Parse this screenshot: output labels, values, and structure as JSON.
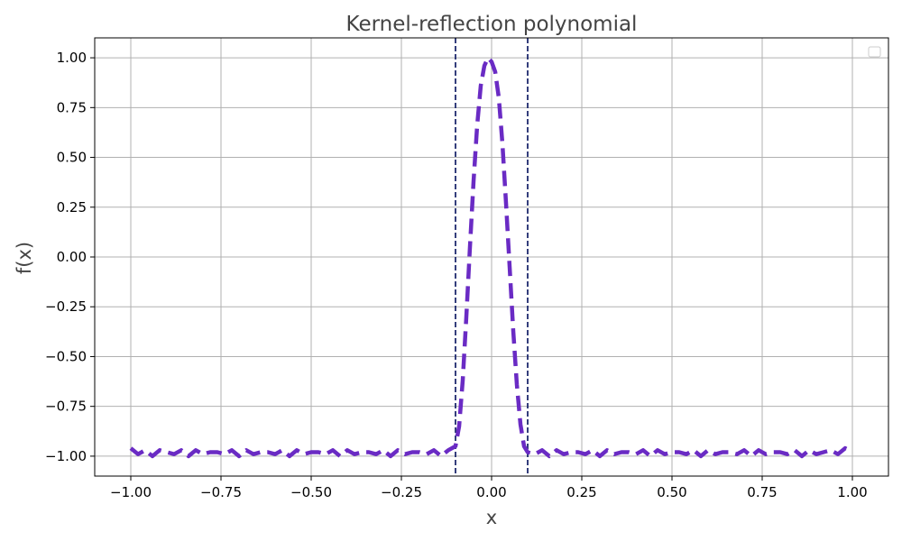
{
  "chart_data": {
    "type": "line",
    "title": "Kernel-reflection polynomial",
    "xlabel": "x",
    "ylabel": "f(x)",
    "xlim": [
      -1.1,
      1.1
    ],
    "ylim": [
      -1.1,
      1.1
    ],
    "xticks": [
      -1.0,
      -0.75,
      -0.5,
      -0.25,
      0.0,
      0.25,
      0.5,
      0.75,
      1.0
    ],
    "xtick_labels": [
      "−1.00",
      "−0.75",
      "−0.50",
      "−0.25",
      "0.00",
      "0.25",
      "0.50",
      "0.75",
      "1.00"
    ],
    "yticks": [
      1.0,
      0.75,
      0.5,
      0.25,
      0.0,
      -0.25,
      -0.5,
      -0.75,
      -1.0
    ],
    "ytick_labels": [
      "1.00",
      "0.75",
      "0.50",
      "0.25",
      "0.00",
      "−0.25",
      "−0.50",
      "−0.75",
      "−1.00"
    ],
    "grid": true,
    "legend": "top-right (empty)",
    "vlines": [
      -0.1,
      0.1
    ],
    "colors": {
      "series": "#6a2bc4",
      "vline": "#1f2a6e",
      "grid": "#b0b0b0",
      "text": "#444444"
    },
    "series": [
      {
        "style": "dashed",
        "x": [
          -1.0,
          -0.98,
          -0.96,
          -0.94,
          -0.92,
          -0.9,
          -0.88,
          -0.86,
          -0.84,
          -0.82,
          -0.8,
          -0.78,
          -0.76,
          -0.74,
          -0.72,
          -0.7,
          -0.68,
          -0.66,
          -0.64,
          -0.62,
          -0.6,
          -0.58,
          -0.56,
          -0.54,
          -0.52,
          -0.5,
          -0.48,
          -0.46,
          -0.44,
          -0.42,
          -0.4,
          -0.38,
          -0.36,
          -0.34,
          -0.32,
          -0.3,
          -0.28,
          -0.26,
          -0.24,
          -0.22,
          -0.2,
          -0.18,
          -0.16,
          -0.14,
          -0.12,
          -0.1,
          -0.09,
          -0.08,
          -0.07,
          -0.06,
          -0.05,
          -0.04,
          -0.03,
          -0.02,
          -0.01,
          0.0,
          0.01,
          0.02,
          0.03,
          0.04,
          0.05,
          0.06,
          0.07,
          0.08,
          0.09,
          0.1,
          0.12,
          0.14,
          0.16,
          0.18,
          0.2,
          0.22,
          0.24,
          0.26,
          0.28,
          0.3,
          0.32,
          0.34,
          0.36,
          0.38,
          0.4,
          0.42,
          0.44,
          0.46,
          0.48,
          0.5,
          0.52,
          0.54,
          0.56,
          0.58,
          0.6,
          0.62,
          0.64,
          0.66,
          0.68,
          0.7,
          0.72,
          0.74,
          0.76,
          0.78,
          0.8,
          0.82,
          0.84,
          0.86,
          0.88,
          0.9,
          0.92,
          0.94,
          0.96,
          0.98,
          1.0
        ],
        "y": [
          -0.96,
          -0.99,
          -0.97,
          -1.0,
          -0.97,
          -0.98,
          -0.99,
          -0.97,
          -1.0,
          -0.97,
          -0.99,
          -0.98,
          -0.98,
          -0.99,
          -0.97,
          -1.0,
          -0.97,
          -0.99,
          -0.98,
          -0.98,
          -0.99,
          -0.97,
          -1.0,
          -0.97,
          -0.99,
          -0.98,
          -0.98,
          -0.99,
          -0.97,
          -1.0,
          -0.97,
          -0.99,
          -0.98,
          -0.98,
          -0.99,
          -0.97,
          -1.0,
          -0.97,
          -0.99,
          -0.98,
          -0.98,
          -0.99,
          -0.97,
          -1.0,
          -0.97,
          -0.95,
          -0.85,
          -0.62,
          -0.3,
          0.05,
          0.38,
          0.66,
          0.86,
          0.96,
          1.0,
          0.98,
          0.93,
          0.8,
          0.57,
          0.27,
          -0.05,
          -0.37,
          -0.64,
          -0.84,
          -0.95,
          -0.98,
          -0.99,
          -0.97,
          -1.0,
          -0.97,
          -0.99,
          -0.98,
          -0.98,
          -0.99,
          -0.97,
          -1.0,
          -0.97,
          -0.99,
          -0.98,
          -0.98,
          -0.99,
          -0.97,
          -1.0,
          -0.97,
          -0.99,
          -0.98,
          -0.98,
          -0.99,
          -0.97,
          -1.0,
          -0.97,
          -0.99,
          -0.98,
          -0.98,
          -0.99,
          -0.97,
          -1.0,
          -0.97,
          -0.99,
          -0.98,
          -0.98,
          -0.99,
          -0.97,
          -1.0,
          -0.97,
          -0.99,
          -0.98,
          -0.97,
          -0.99,
          -0.96,
          -0.98
        ]
      }
    ]
  }
}
